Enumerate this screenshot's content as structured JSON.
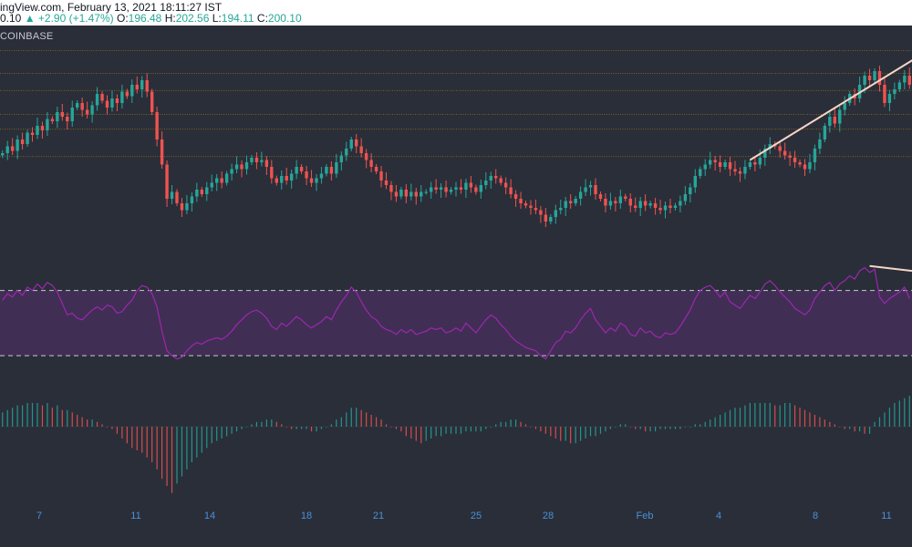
{
  "header": {
    "line1": "ingView.com, February 13, 2021 18:11:27 IST",
    "last": "0.10",
    "change": "▲ +2.90 (+1.47%)",
    "o_label": "O:",
    "o_value": "196.48",
    "h_label": "H:",
    "h_value": "202.56",
    "l_label": "L:",
    "l_value": "194.11",
    "c_label": "C:",
    "c_value": "200.10",
    "exchange": "COINBASE"
  },
  "colors": {
    "background": "#2a2e39",
    "up": "#26a69a",
    "down": "#ef5350",
    "rsi_line": "#9c27b0",
    "rsi_band": "#4a2f5e",
    "levels": "#b8860b",
    "trendline": "#f5d6c6",
    "axis_text": "#4a90d9"
  },
  "chart_data": [
    {
      "type": "candlestick",
      "x_ticks": [
        "7",
        "11",
        "14",
        "18",
        "21",
        "25",
        "28",
        "Feb",
        "4",
        "8",
        "11"
      ],
      "close": [
        210,
        213,
        211,
        216,
        214,
        219,
        218,
        222,
        220,
        225,
        224,
        228,
        226,
        224,
        230,
        232,
        229,
        227,
        231,
        236,
        233,
        230,
        234,
        232,
        237,
        235,
        240,
        238,
        242,
        237,
        228,
        216,
        205,
        190,
        193,
        188,
        185,
        188,
        191,
        194,
        192,
        195,
        197,
        199,
        197,
        201,
        203,
        205,
        203,
        206,
        208,
        206,
        207,
        204,
        199,
        197,
        200,
        198,
        201,
        204,
        202,
        199,
        197,
        199,
        201,
        204,
        201,
        206,
        209,
        212,
        216,
        213,
        210,
        207,
        204,
        202,
        198,
        196,
        193,
        191,
        194,
        191,
        193,
        191,
        193,
        193,
        195,
        194,
        195,
        193,
        194,
        195,
        194,
        197,
        195,
        193,
        196,
        198,
        200,
        199,
        197,
        195,
        192,
        190,
        188,
        187,
        186,
        185,
        183,
        180,
        182,
        185,
        186,
        189,
        188,
        190,
        193,
        195,
        196,
        192,
        190,
        187,
        189,
        188,
        191,
        190,
        187,
        186,
        189,
        187,
        188,
        186,
        185,
        187,
        186,
        187,
        189,
        192,
        195,
        200,
        203,
        205,
        207,
        206,
        204,
        206,
        203,
        202,
        201,
        204,
        206,
        205,
        208,
        212,
        214,
        213,
        211,
        209,
        208,
        206,
        205,
        203,
        206,
        212,
        216,
        222,
        226,
        223,
        229,
        232,
        236,
        234,
        240,
        244,
        242,
        246,
        240,
        232,
        236,
        238,
        241,
        244,
        240
      ],
      "open_rule": "previous close",
      "levels": [
        255,
        245,
        237.5,
        227,
        220.5,
        208.5
      ],
      "trendlines": [
        {
          "from_index": 150,
          "from_value": 207,
          "to_index": 182,
          "to_value": 250
        }
      ],
      "ylim": [
        170,
        258
      ]
    },
    {
      "type": "line",
      "name": "RSI",
      "values": [
        64,
        68,
        66,
        70,
        67,
        72,
        70,
        74,
        71,
        75,
        73,
        69,
        62,
        55,
        56,
        53,
        52,
        55,
        58,
        60,
        58,
        61,
        60,
        56,
        57,
        61,
        64,
        70,
        73,
        72,
        68,
        60,
        45,
        33,
        30,
        28,
        29,
        33,
        36,
        38,
        37,
        39,
        40,
        41,
        40,
        42,
        45,
        49,
        52,
        55,
        57,
        58,
        56,
        53,
        48,
        46,
        50,
        48,
        51,
        54,
        52,
        49,
        47,
        49,
        51,
        54,
        52,
        58,
        63,
        67,
        72,
        69,
        63,
        58,
        54,
        52,
        48,
        46,
        45,
        43,
        46,
        44,
        46,
        43,
        44,
        45,
        47,
        46,
        47,
        44,
        45,
        47,
        45,
        50,
        47,
        44,
        48,
        52,
        55,
        53,
        49,
        46,
        42,
        39,
        37,
        35,
        34,
        33,
        30,
        28,
        33,
        38,
        40,
        45,
        44,
        47,
        52,
        56,
        59,
        52,
        48,
        44,
        47,
        45,
        50,
        48,
        43,
        42,
        47,
        44,
        45,
        42,
        41,
        44,
        43,
        44,
        48,
        53,
        58,
        65,
        70,
        72,
        73,
        70,
        66,
        69,
        63,
        61,
        59,
        63,
        67,
        65,
        69,
        74,
        76,
        73,
        69,
        66,
        63,
        59,
        57,
        55,
        58,
        65,
        69,
        73,
        75,
        70,
        74,
        76,
        79,
        77,
        82,
        84,
        81,
        83,
        66,
        62,
        65,
        67,
        69,
        72,
        65
      ],
      "bands": [
        70,
        30
      ],
      "ylim": [
        20,
        86
      ],
      "trendlines": [
        {
          "from_index": 174,
          "from_value": 85,
          "to_index": 184,
          "to_value": 82
        }
      ]
    },
    {
      "type": "bar",
      "name": "MACD histogram",
      "values": [
        6,
        7,
        8,
        9,
        9,
        10,
        10,
        10,
        9,
        10,
        8,
        9,
        7,
        7,
        6,
        5,
        4,
        3,
        3,
        2,
        1,
        0,
        -1,
        -3,
        -5,
        -7,
        -9,
        -10,
        -11,
        -13,
        -15,
        -18,
        -22,
        -25,
        -28,
        -24,
        -21,
        -18,
        -15,
        -13,
        -11,
        -9,
        -7,
        -6,
        -5,
        -4,
        -3,
        -2,
        -1,
        0,
        1,
        2,
        2,
        3,
        3,
        2,
        1,
        0,
        -1,
        -1,
        -1,
        -1,
        -2,
        -2,
        -1,
        0,
        1,
        3,
        4,
        6,
        8,
        8,
        7,
        6,
        5,
        4,
        3,
        1,
        0,
        -1,
        -2,
        -4,
        -5,
        -6,
        -7,
        -6,
        -5,
        -4,
        -4,
        -3,
        -3,
        -3,
        -3,
        -2,
        -2,
        -2,
        -2,
        -1,
        0,
        1,
        2,
        2,
        3,
        3,
        2,
        1,
        0,
        -1,
        -2,
        -3,
        -4,
        -5,
        -6,
        -6,
        -7,
        -7,
        -6,
        -5,
        -4,
        -4,
        -3,
        -2,
        -1,
        0,
        1,
        1,
        0,
        -1,
        -1,
        -2,
        -2,
        -2,
        -1,
        -1,
        -1,
        -1,
        -1,
        0,
        0,
        1,
        1,
        2,
        3,
        4,
        5,
        6,
        7,
        8,
        8,
        9,
        10,
        10,
        10,
        10,
        10,
        9,
        9,
        10,
        10,
        9,
        8,
        7,
        6,
        5,
        4,
        3,
        2,
        1,
        0,
        -1,
        -1,
        -2,
        -2,
        -3,
        -3,
        2,
        4,
        6,
        8,
        10,
        11,
        12,
        13,
        14,
        15,
        16,
        17,
        16,
        14,
        13,
        12,
        13,
        14,
        13
      ]
    }
  ]
}
